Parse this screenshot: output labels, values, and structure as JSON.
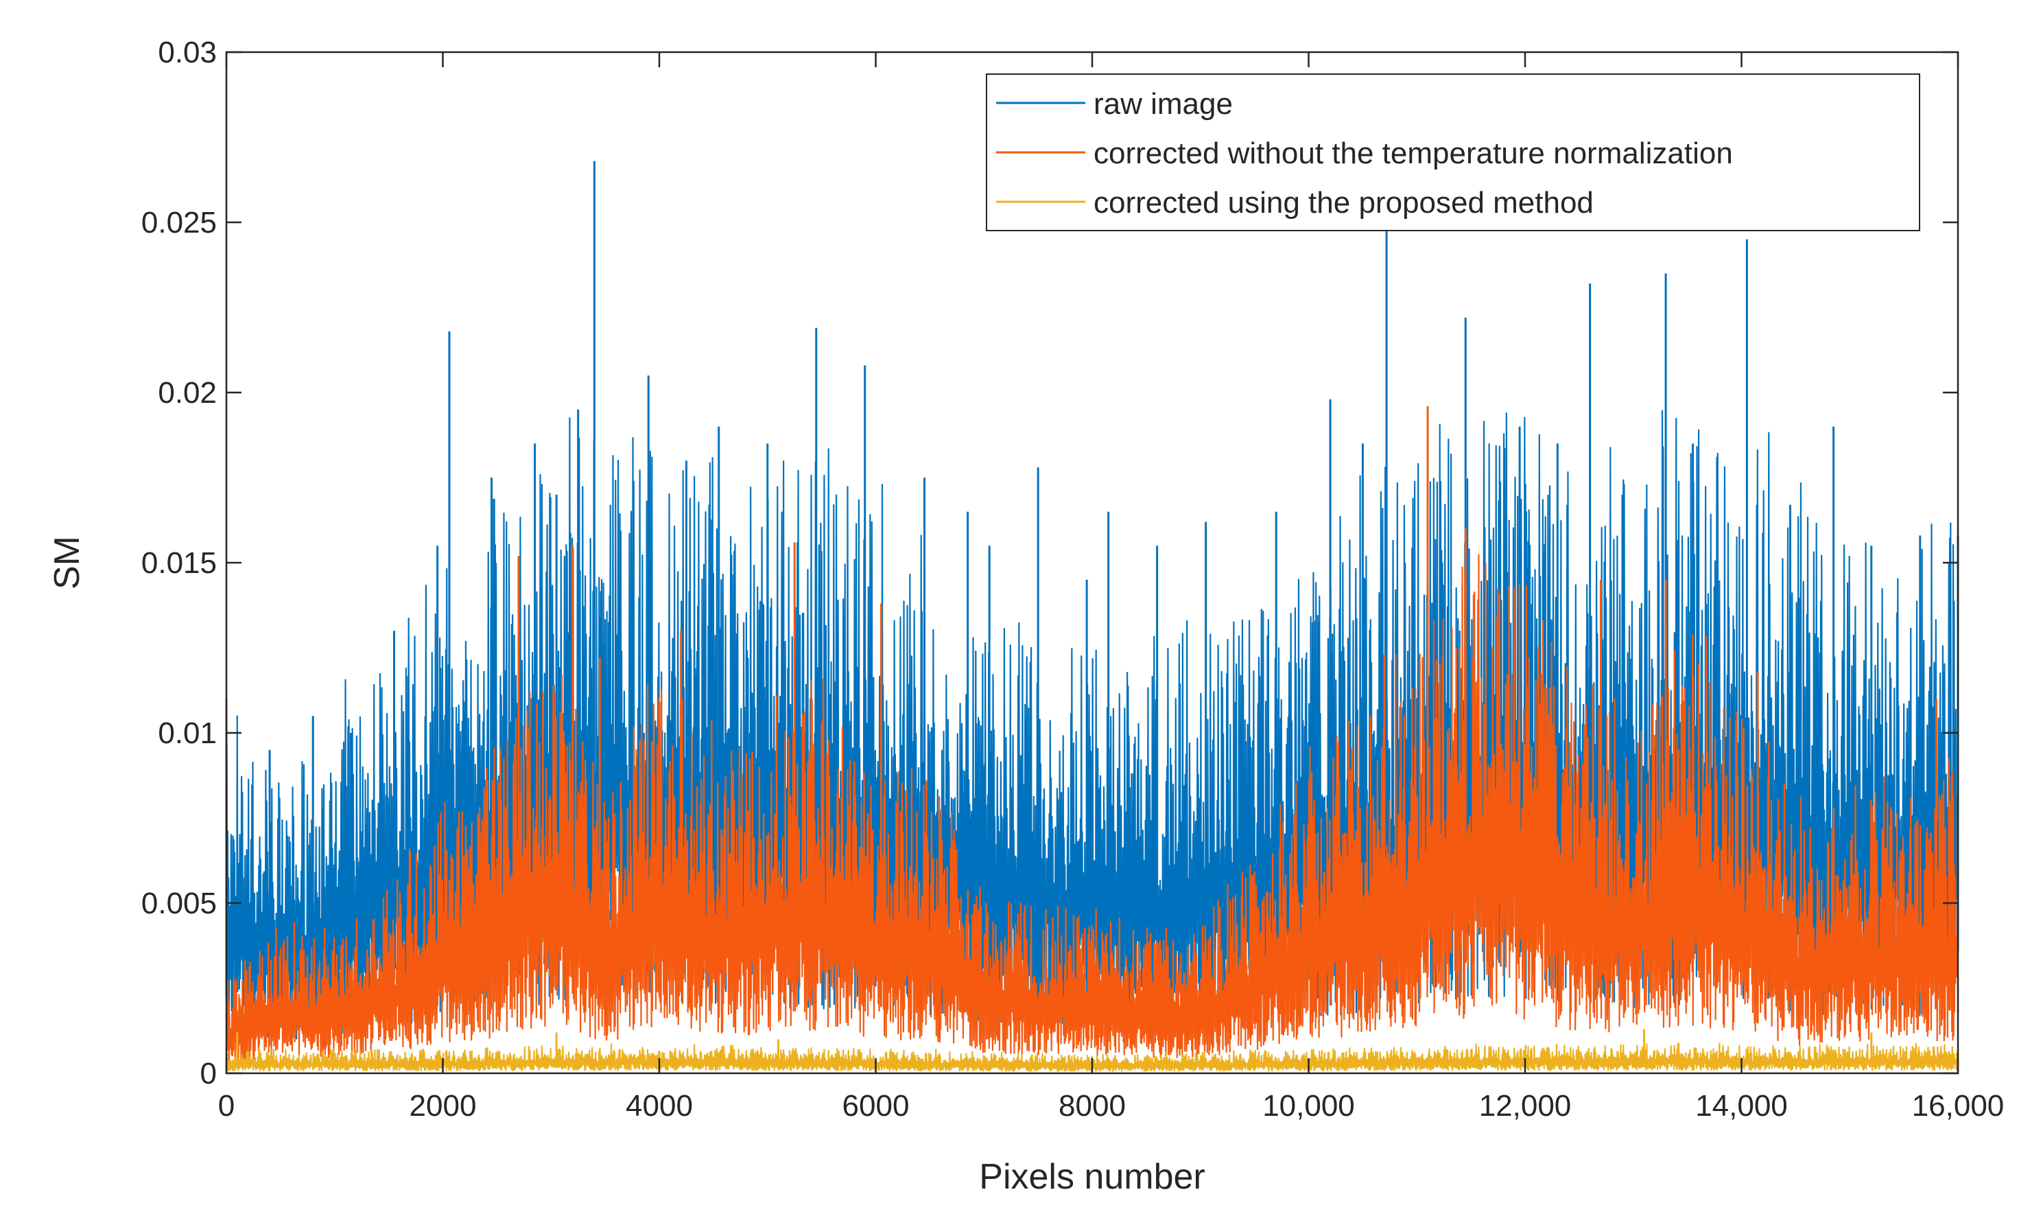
{
  "chart_data": {
    "type": "line",
    "title": "",
    "xlabel": "Pixels number",
    "ylabel": "SM",
    "xlim": [
      0,
      16000
    ],
    "ylim": [
      0,
      0.03
    ],
    "x_ticks": [
      0,
      2000,
      4000,
      6000,
      8000,
      10000,
      12000,
      14000,
      16000
    ],
    "x_tick_labels": [
      "0",
      "2000",
      "4000",
      "6000",
      "8000",
      "10,000",
      "12,000",
      "14,000",
      "16,000"
    ],
    "y_ticks": [
      0,
      0.005,
      0.01,
      0.015,
      0.02,
      0.025,
      0.03
    ],
    "y_tick_labels": [
      "0",
      "0.005",
      "0.01",
      "0.015",
      "0.02",
      "0.025",
      "0.03"
    ],
    "grid": false,
    "legend_position": "top-right",
    "series": [
      {
        "name": "raw image",
        "color": "#0072BD",
        "envelope_x": [
          0,
          500,
          1000,
          1500,
          2000,
          2500,
          3000,
          3500,
          4000,
          4500,
          5000,
          5500,
          6000,
          6500,
          7000,
          7500,
          8000,
          8500,
          9000,
          9500,
          10000,
          10500,
          11000,
          11500,
          12000,
          12500,
          13000,
          13500,
          14000,
          14500,
          15000,
          15500,
          16000
        ],
        "envelope_y": [
          0.0075,
          0.006,
          0.0075,
          0.009,
          0.0105,
          0.012,
          0.013,
          0.0135,
          0.013,
          0.013,
          0.013,
          0.0125,
          0.012,
          0.011,
          0.0095,
          0.009,
          0.009,
          0.009,
          0.009,
          0.0095,
          0.0105,
          0.012,
          0.0135,
          0.0145,
          0.014,
          0.0125,
          0.0125,
          0.0135,
          0.0135,
          0.012,
          0.011,
          0.011,
          0.012
        ],
        "peaks": [
          {
            "x": 0,
            "y": 0.011
          },
          {
            "x": 400,
            "y": 0.0095
          },
          {
            "x": 800,
            "y": 0.0105
          },
          {
            "x": 1150,
            "y": 0.01
          },
          {
            "x": 1550,
            "y": 0.013
          },
          {
            "x": 1950,
            "y": 0.0155
          },
          {
            "x": 2060,
            "y": 0.0218
          },
          {
            "x": 2450,
            "y": 0.0175
          },
          {
            "x": 2850,
            "y": 0.0185
          },
          {
            "x": 3050,
            "y": 0.017
          },
          {
            "x": 3250,
            "y": 0.0195
          },
          {
            "x": 3400,
            "y": 0.0268
          },
          {
            "x": 3900,
            "y": 0.0205
          },
          {
            "x": 4250,
            "y": 0.018
          },
          {
            "x": 4550,
            "y": 0.019
          },
          {
            "x": 5000,
            "y": 0.0185
          },
          {
            "x": 5450,
            "y": 0.0219
          },
          {
            "x": 5900,
            "y": 0.0208
          },
          {
            "x": 6450,
            "y": 0.0175
          },
          {
            "x": 6850,
            "y": 0.0165
          },
          {
            "x": 7050,
            "y": 0.0155
          },
          {
            "x": 7500,
            "y": 0.0178
          },
          {
            "x": 7950,
            "y": 0.0145
          },
          {
            "x": 8150,
            "y": 0.0165
          },
          {
            "x": 8600,
            "y": 0.0155
          },
          {
            "x": 9050,
            "y": 0.0162
          },
          {
            "x": 9700,
            "y": 0.0165
          },
          {
            "x": 10200,
            "y": 0.0198
          },
          {
            "x": 10500,
            "y": 0.0185
          },
          {
            "x": 10720,
            "y": 0.0248
          },
          {
            "x": 11100,
            "y": 0.0185
          },
          {
            "x": 11450,
            "y": 0.0222
          },
          {
            "x": 11950,
            "y": 0.019
          },
          {
            "x": 12300,
            "y": 0.0185
          },
          {
            "x": 12600,
            "y": 0.0232
          },
          {
            "x": 12900,
            "y": 0.017
          },
          {
            "x": 13300,
            "y": 0.0235
          },
          {
            "x": 13550,
            "y": 0.0185
          },
          {
            "x": 14050,
            "y": 0.0245
          },
          {
            "x": 14450,
            "y": 0.0167
          },
          {
            "x": 14850,
            "y": 0.019
          },
          {
            "x": 15200,
            "y": 0.0155
          },
          {
            "x": 15650,
            "y": 0.0158
          },
          {
            "x": 16000,
            "y": 0.0158
          }
        ]
      },
      {
        "name": "corrected without the temperature normalization",
        "color": "#F55A10",
        "envelope_x": [
          0,
          500,
          1000,
          1500,
          2000,
          2500,
          3000,
          3500,
          4000,
          4500,
          5000,
          5500,
          6000,
          6500,
          7000,
          7500,
          8000,
          8500,
          9000,
          9500,
          10000,
          10500,
          11000,
          11500,
          12000,
          12500,
          13000,
          13500,
          14000,
          14500,
          15000,
          15500,
          16000
        ],
        "envelope_y": [
          0.002,
          0.003,
          0.003,
          0.004,
          0.0055,
          0.007,
          0.009,
          0.006,
          0.0085,
          0.007,
          0.0075,
          0.0085,
          0.0065,
          0.0065,
          0.004,
          0.0035,
          0.0035,
          0.003,
          0.003,
          0.0045,
          0.0065,
          0.0075,
          0.009,
          0.011,
          0.0105,
          0.008,
          0.0075,
          0.0095,
          0.008,
          0.0055,
          0.006,
          0.006,
          0.0065
        ],
        "peaks": [
          {
            "x": 2700,
            "y": 0.0152
          },
          {
            "x": 3200,
            "y": 0.0155
          },
          {
            "x": 3450,
            "y": 0.0122
          },
          {
            "x": 4200,
            "y": 0.013
          },
          {
            "x": 5250,
            "y": 0.0156
          },
          {
            "x": 6050,
            "y": 0.0138
          },
          {
            "x": 10700,
            "y": 0.0123
          },
          {
            "x": 11100,
            "y": 0.0196
          },
          {
            "x": 11450,
            "y": 0.016
          },
          {
            "x": 12700,
            "y": 0.0145
          },
          {
            "x": 13300,
            "y": 0.0145
          },
          {
            "x": 14150,
            "y": 0.0118
          },
          {
            "x": 15800,
            "y": 0.011
          }
        ]
      },
      {
        "name": "corrected using the proposed method",
        "color": "#EDB120",
        "envelope_x": [
          0,
          2000,
          4000,
          6000,
          8000,
          10000,
          12000,
          14000,
          16000
        ],
        "envelope_y": [
          0.0005,
          0.0005,
          0.0006,
          0.0005,
          0.0004,
          0.0005,
          0.0006,
          0.0006,
          0.0006
        ],
        "peaks": [
          {
            "x": 100,
            "y": 0.0012
          },
          {
            "x": 3050,
            "y": 0.0012
          },
          {
            "x": 5100,
            "y": 0.001
          },
          {
            "x": 13100,
            "y": 0.0013
          },
          {
            "x": 15200,
            "y": 0.0012
          }
        ]
      }
    ]
  }
}
